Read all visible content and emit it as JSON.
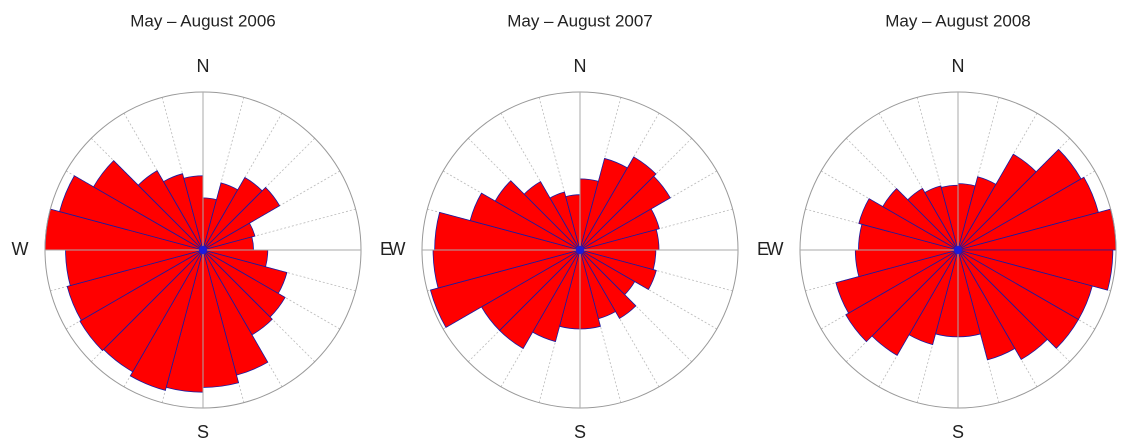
{
  "chart_data": [
    {
      "type": "polar_bar",
      "title": "May – August 2006",
      "color": "#ff0000",
      "edgecolor": "#1a1aa0",
      "rlim": [
        0,
        1
      ],
      "sector_width": 15,
      "thetaticks": [
        {
          "value": 0,
          "label": "N"
        },
        {
          "value": 90,
          "label": "E"
        },
        {
          "value": 180,
          "label": "S"
        },
        {
          "value": 270,
          "label": "W"
        }
      ],
      "values": [
        0.33,
        0.44,
        0.53,
        0.56,
        0.34,
        0.32,
        0.41,
        0.55,
        0.6,
        0.62,
        0.82,
        0.87,
        0.9,
        0.92,
        0.89,
        0.9,
        0.89,
        0.87,
        1.0,
        0.94,
        0.8,
        0.58,
        0.5,
        0.47
      ]
    },
    {
      "type": "polar_bar",
      "title": "May – August 2007",
      "color": "#ff0000",
      "edgecolor": "#1a1aa0",
      "rlim": [
        0,
        1
      ],
      "sector_width": 15,
      "thetaticks": [
        {
          "value": 0,
          "label": "N"
        },
        {
          "value": 90,
          "label": "E"
        },
        {
          "value": 180,
          "label": "S"
        },
        {
          "value": 270,
          "label": "W"
        }
      ],
      "values": [
        0.45,
        0.6,
        0.68,
        0.66,
        0.52,
        0.5,
        0.48,
        0.5,
        0.4,
        0.5,
        0.45,
        0.5,
        0.5,
        0.6,
        0.72,
        0.72,
        0.98,
        0.93,
        0.92,
        0.72,
        0.62,
        0.5,
        0.38,
        0.35
      ]
    },
    {
      "type": "polar_bar",
      "title": "May – August 2008",
      "color": "#ff0000",
      "edgecolor": "#1a1aa0",
      "rlim": [
        0,
        1
      ],
      "sector_width": 15,
      "thetaticks": [
        {
          "value": 0,
          "label": "N"
        },
        {
          "value": 180,
          "label": "S"
        },
        {
          "value": 270,
          "label": "W"
        }
      ],
      "values": [
        0.42,
        0.48,
        0.7,
        0.9,
        0.92,
        1.0,
        0.98,
        0.88,
        0.88,
        0.8,
        0.72,
        0.55,
        0.55,
        0.62,
        0.77,
        0.82,
        0.8,
        0.65,
        0.63,
        0.65,
        0.55,
        0.45,
        0.42,
        0.41
      ]
    }
  ]
}
